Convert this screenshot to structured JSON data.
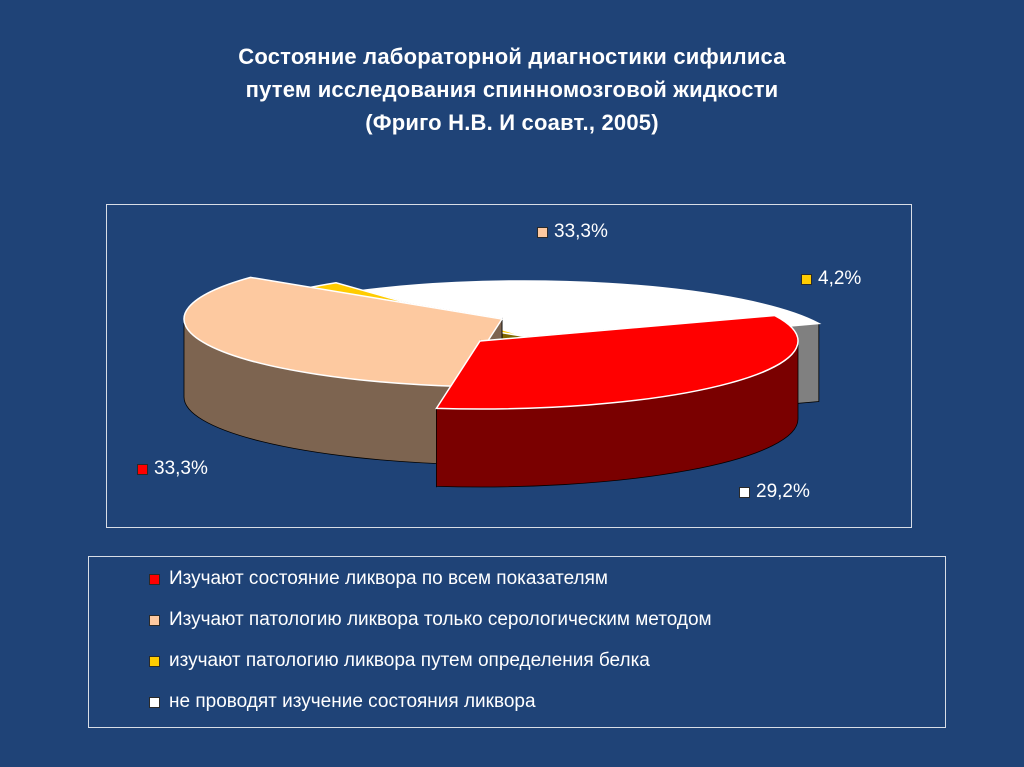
{
  "title": {
    "line1": "Состояние лабораторной диагностики сифилиса",
    "line2": "путем исследования спинномозговой жидкости",
    "line3": "(Фриго Н.В. И соавт., 2005)"
  },
  "chart_data": {
    "type": "pie",
    "title": "Состояние лабораторной диагностики сифилиса путем исследования спинномозговой жидкости (Фриго Н.В. И соавт., 2005)",
    "legend_position": "bottom",
    "slices": [
      {
        "name": "Изучают состояние ликвора по всем показателям",
        "value": 33.3,
        "label": "33,3%",
        "color": "#ff0000",
        "side_color": "#7a0000"
      },
      {
        "name": "Изучают патологию ликвора только серологическим методом",
        "value": 33.3,
        "label": "33,3%",
        "color": "#fdc9a0",
        "side_color": "#7d6450"
      },
      {
        "name": "изучают патологию ликвора путем определения белка",
        "value": 4.2,
        "label": "4,2%",
        "color": "#ffcc00",
        "side_color": "#7f6600"
      },
      {
        "name": "не проводят изучение состояния ликвора",
        "value": 29.2,
        "label": "29,2%",
        "color": "#ffffff",
        "side_color": "#808080"
      }
    ]
  }
}
